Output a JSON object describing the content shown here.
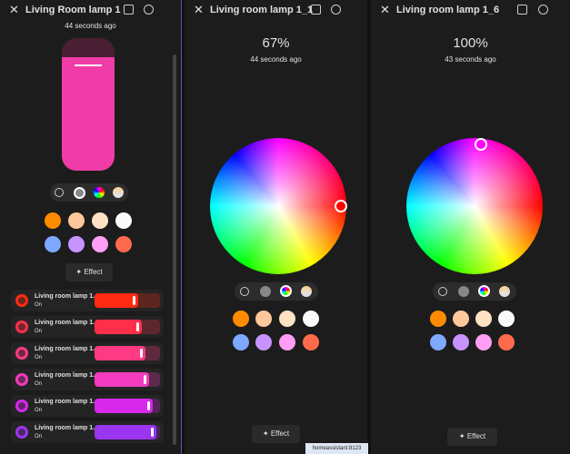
{
  "panels": [
    {
      "title": "Living Room lamp 1",
      "status": "44 seconds ago",
      "effect": "Effect",
      "lights": [
        {
          "name": "Living room lamp 1...",
          "state": "On",
          "color": "#ff2a12"
        },
        {
          "name": "Living room lamp 1...",
          "state": "On",
          "color": "#ff2f4a"
        },
        {
          "name": "Living room lamp 1...",
          "state": "On",
          "color": "#ff3a84"
        },
        {
          "name": "Living room lamp 1...",
          "state": "On",
          "color": "#f33bc0"
        },
        {
          "name": "Living room lamp 1...",
          "state": "On",
          "color": "#d629ea"
        },
        {
          "name": "Living room lamp 1...",
          "state": "On",
          "color": "#9a35f0"
        }
      ]
    },
    {
      "title": "Living room lamp 1_1",
      "brightness": "67%",
      "status": "44 seconds ago",
      "effect": "Effect"
    },
    {
      "title": "Living room lamp 1_6",
      "brightness": "100%",
      "status": "43 seconds ago",
      "effect": "Effect"
    }
  ],
  "tooltip": "homeassistant:8123"
}
